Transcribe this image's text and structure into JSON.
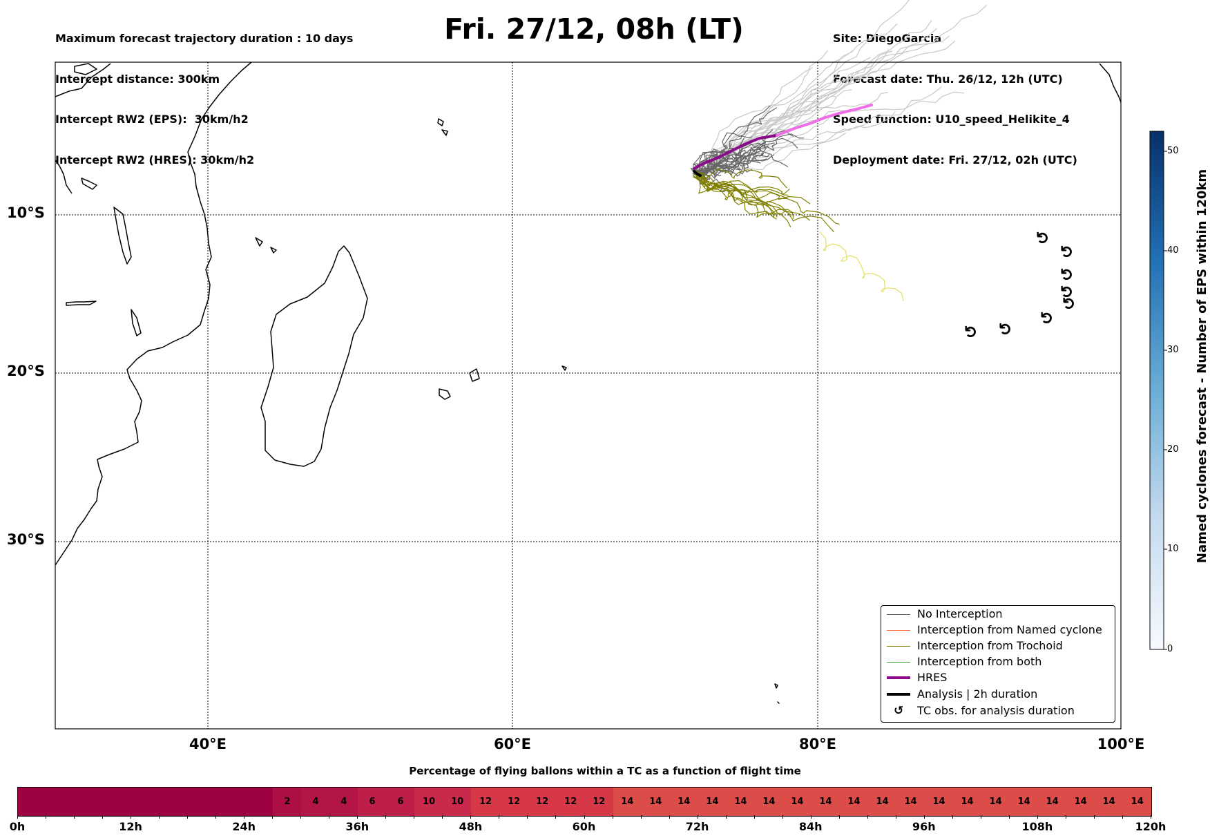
{
  "header": {
    "title": "Fri. 27/12, 08h (LT)",
    "left_lines": [
      "Maximum forecast trajectory duration : 10 days",
      "Intercept distance: 300km",
      "Intercept RW2 (EPS):  30km/h2",
      "Intercept RW2 (HRES): 30km/h2"
    ],
    "right_lines": [
      "Site: DiegoGarcia",
      "Forecast date: Thu. 26/12, 12h (UTC)",
      "Speed function: U10_speed_Helikite_4",
      "Deployment date: Fri. 27/12, 02h (UTC)"
    ]
  },
  "map": {
    "lat_labels": [
      "10°S",
      "20°S",
      "30°S"
    ],
    "lon_labels": [
      "40°E",
      "60°E",
      "80°E",
      "100°E"
    ],
    "lon_range": [
      30,
      100
    ],
    "lat_range": [
      -41,
      2
    ],
    "colors": {
      "no_interception": "#666666",
      "named_cyclone": "#ff6a33",
      "trochoid": "#808000",
      "both": "#2ca02c",
      "hres": "#8b0a8b",
      "hres_late": "#ee6ee8",
      "analysis": "#000000",
      "late_trochoid": "#e6e36a",
      "late_no_interception": "#c8c8c8"
    }
  },
  "legend": {
    "items": [
      {
        "label": "No Interception",
        "color": "#666666",
        "style": "thin"
      },
      {
        "label": "Interception from Named cyclone",
        "color": "#ff6a33",
        "style": "thin"
      },
      {
        "label": "Interception from Trochoid",
        "color": "#808000",
        "style": "thin"
      },
      {
        "label": "Interception from both",
        "color": "#2ca02c",
        "style": "thin"
      },
      {
        "label": "HRES",
        "color": "#8b0a8b",
        "style": "thick"
      },
      {
        "label": "Analysis | 2h duration",
        "color": "#000000",
        "style": "thick"
      },
      {
        "label": "TC obs. for analysis duration",
        "color": "#000000",
        "style": "symbol"
      }
    ],
    "tc_symbol": "↺"
  },
  "colorbar": {
    "title": "Named cyclones forecast - Number of EPS within 120km",
    "ticks": [
      "0",
      "10",
      "20",
      "30",
      "40",
      "50"
    ],
    "range": [
      0,
      52
    ]
  },
  "bottom": {
    "title": "Percentage of flying ballons within a TC as a function of flight time",
    "hour_labels": [
      "0h",
      "12h",
      "24h",
      "36h",
      "48h",
      "60h",
      "72h",
      "84h",
      "96h",
      "108h",
      "120h"
    ],
    "hours": [
      0,
      12,
      24,
      36,
      48,
      60,
      72,
      84,
      96,
      108,
      120
    ],
    "segments": [
      {
        "start": 0,
        "end": 27,
        "value": ""
      },
      {
        "start": 27,
        "end": 30,
        "value": "2"
      },
      {
        "start": 30,
        "end": 33,
        "value": "4"
      },
      {
        "start": 33,
        "end": 36,
        "value": "4"
      },
      {
        "start": 36,
        "end": 39,
        "value": "6"
      },
      {
        "start": 39,
        "end": 42,
        "value": "6"
      },
      {
        "start": 42,
        "end": 45,
        "value": "10"
      },
      {
        "start": 45,
        "end": 48,
        "value": "10"
      },
      {
        "start": 48,
        "end": 51,
        "value": "12"
      },
      {
        "start": 51,
        "end": 54,
        "value": "12"
      },
      {
        "start": 54,
        "end": 57,
        "value": "12"
      },
      {
        "start": 57,
        "end": 60,
        "value": "12"
      },
      {
        "start": 60,
        "end": 63,
        "value": "12"
      },
      {
        "start": 63,
        "end": 66,
        "value": "14"
      },
      {
        "start": 66,
        "end": 69,
        "value": "14"
      },
      {
        "start": 69,
        "end": 72,
        "value": "14"
      },
      {
        "start": 72,
        "end": 75,
        "value": "14"
      },
      {
        "start": 75,
        "end": 78,
        "value": "14"
      },
      {
        "start": 78,
        "end": 81,
        "value": "14"
      },
      {
        "start": 81,
        "end": 84,
        "value": "14"
      },
      {
        "start": 84,
        "end": 87,
        "value": "14"
      },
      {
        "start": 87,
        "end": 90,
        "value": "14"
      },
      {
        "start": 90,
        "end": 93,
        "value": "14"
      },
      {
        "start": 93,
        "end": 96,
        "value": "14"
      },
      {
        "start": 96,
        "end": 99,
        "value": "14"
      },
      {
        "start": 99,
        "end": 102,
        "value": "14"
      },
      {
        "start": 102,
        "end": 105,
        "value": "14"
      },
      {
        "start": 105,
        "end": 108,
        "value": "14"
      },
      {
        "start": 108,
        "end": 111,
        "value": "14"
      },
      {
        "start": 111,
        "end": 114,
        "value": "14"
      },
      {
        "start": 114,
        "end": 117,
        "value": "14"
      },
      {
        "start": 117,
        "end": 120,
        "value": "14"
      }
    ],
    "color_scale": {
      "0": "#9e0142",
      "2": "#ad0e43",
      "4": "#b31546",
      "6": "#be1f48",
      "10": "#c9294b",
      "12": "#d73847",
      "14": "#dc4c48"
    }
  }
}
